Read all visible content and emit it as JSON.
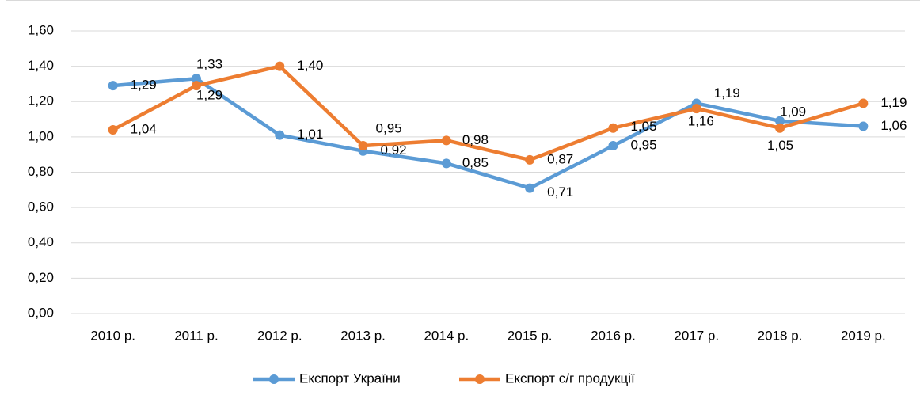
{
  "chart_data": {
    "type": "line",
    "categories": [
      "2010 р.",
      "2011 р.",
      "2012 р.",
      "2013 р.",
      "2014 р.",
      "2015 р.",
      "2016 р.",
      "2017 р.",
      "2018 р.",
      "2019 р."
    ],
    "series": [
      {
        "name": "Експорт України",
        "color": "#5b9bd5",
        "values": [
          1.29,
          1.33,
          1.01,
          0.92,
          0.85,
          0.71,
          0.95,
          1.19,
          1.09,
          1.06
        ],
        "value_labels": [
          "1,29",
          "1,33",
          "1,01",
          "0,92",
          "0,85",
          "0,71",
          "0,95",
          "1,19",
          "1,09",
          "1,06"
        ]
      },
      {
        "name": "Експорт с/г продукції",
        "color": "#ed7d31",
        "values": [
          1.04,
          1.29,
          1.4,
          0.95,
          0.98,
          0.87,
          1.05,
          1.16,
          1.05,
          1.19
        ],
        "value_labels": [
          "1,04",
          "1,29",
          "1,40",
          "0,95",
          "0,98",
          "0,87",
          "1,05",
          "1,16",
          "1,05",
          "1,19"
        ]
      }
    ],
    "ylim": [
      0,
      1.6
    ],
    "yticks": [
      {
        "value": 0,
        "label": "0,00"
      },
      {
        "value": 0.2,
        "label": "0,20"
      },
      {
        "value": 0.4,
        "label": "0,40"
      },
      {
        "value": 0.6,
        "label": "0,60"
      },
      {
        "value": 0.8,
        "label": "0,80"
      },
      {
        "value": 1.0,
        "label": "1,00"
      },
      {
        "value": 1.2,
        "label": "1,20"
      },
      {
        "value": 1.4,
        "label": "1,40"
      },
      {
        "value": 1.6,
        "label": "1,60"
      }
    ],
    "grid": true,
    "legend": "bottom"
  }
}
